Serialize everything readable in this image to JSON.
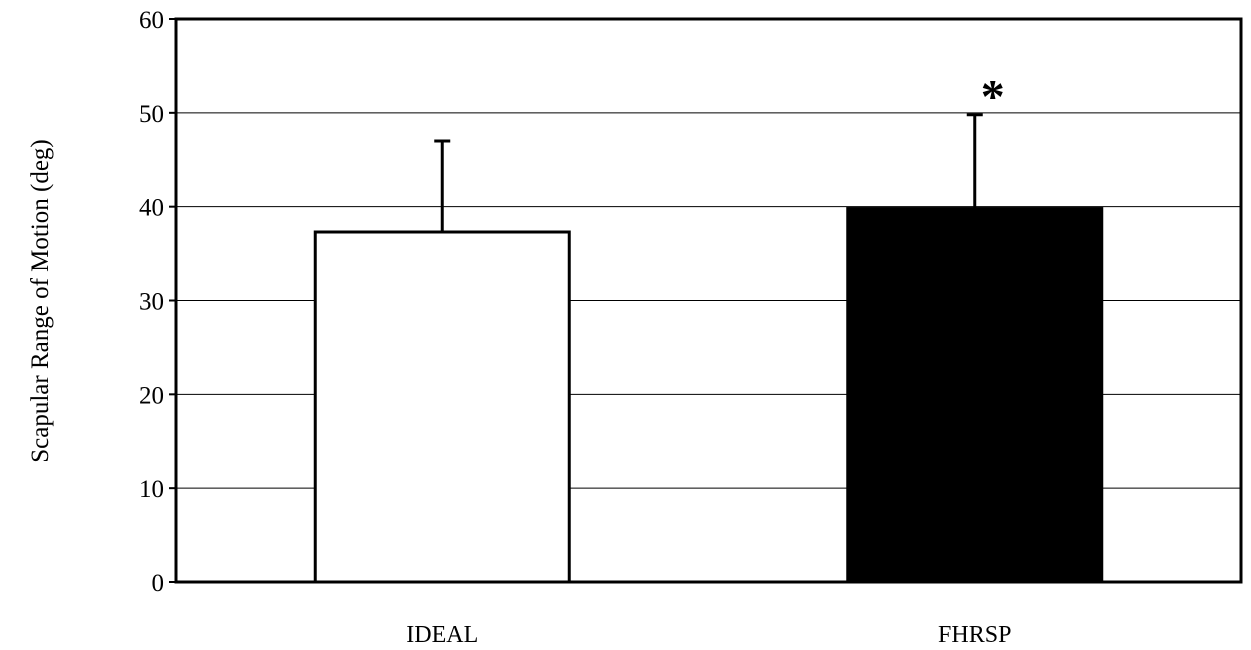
{
  "chart_data": {
    "type": "bar",
    "title": "",
    "xlabel": "",
    "ylabel": "Scapular Range of Motion (deg)",
    "categories": [
      "IDEAL",
      "FHRSP"
    ],
    "values": [
      37.3,
      39.8
    ],
    "error_upper": [
      47,
      49.8
    ],
    "bar_fill": [
      "#ffffff",
      "#000000"
    ],
    "bar_stroke": "#000000",
    "ylim": [
      0,
      60
    ],
    "yticks": [
      0,
      10,
      20,
      30,
      40,
      50,
      60
    ],
    "ytick_labels": [
      "0",
      "10",
      "20",
      "30",
      "40",
      "50",
      "60"
    ],
    "grid": true,
    "legend": "none",
    "annotations": [
      {
        "text": "*",
        "category": "FHRSP"
      }
    ]
  }
}
